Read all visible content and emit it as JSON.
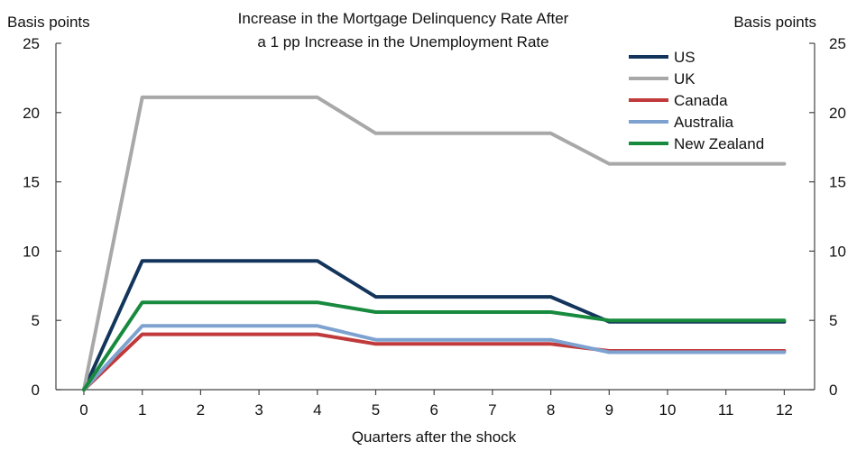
{
  "chart_data": {
    "type": "line",
    "title_lines": [
      "Increase in the Mortgage Delinquency Rate After",
      "a 1 pp Increase in the Unemployment Rate"
    ],
    "left_axis_unit": "Basis points",
    "right_axis_unit": "Basis points",
    "xlabel": "Quarters after the shock",
    "x": [
      0,
      1,
      2,
      3,
      4,
      5,
      6,
      7,
      8,
      9,
      10,
      11,
      12
    ],
    "ylim": [
      0,
      25
    ],
    "yticks": [
      0,
      5,
      10,
      15,
      20,
      25
    ],
    "grid": false,
    "legend_position": "top-right",
    "series": [
      {
        "name": "US",
        "color": "#13355c",
        "values": [
          0,
          9.3,
          9.3,
          9.3,
          9.3,
          6.7,
          6.7,
          6.7,
          6.7,
          4.9,
          4.9,
          4.9,
          4.9
        ]
      },
      {
        "name": "UK",
        "color": "#a8a8a8",
        "values": [
          0,
          21.1,
          21.1,
          21.1,
          21.1,
          18.5,
          18.5,
          18.5,
          18.5,
          16.3,
          16.3,
          16.3,
          16.3
        ]
      },
      {
        "name": "Canada",
        "color": "#c0393b",
        "values": [
          0,
          4.0,
          4.0,
          4.0,
          4.0,
          3.3,
          3.3,
          3.3,
          3.3,
          2.8,
          2.8,
          2.8,
          2.8
        ]
      },
      {
        "name": "Australia",
        "color": "#7ea2d0",
        "values": [
          0,
          4.6,
          4.6,
          4.6,
          4.6,
          3.6,
          3.6,
          3.6,
          3.6,
          2.7,
          2.7,
          2.7,
          2.7
        ]
      },
      {
        "name": "New Zealand",
        "color": "#178a3e",
        "values": [
          0,
          6.3,
          6.3,
          6.3,
          6.3,
          5.6,
          5.6,
          5.6,
          5.6,
          5.0,
          5.0,
          5.0,
          5.0
        ]
      }
    ]
  }
}
